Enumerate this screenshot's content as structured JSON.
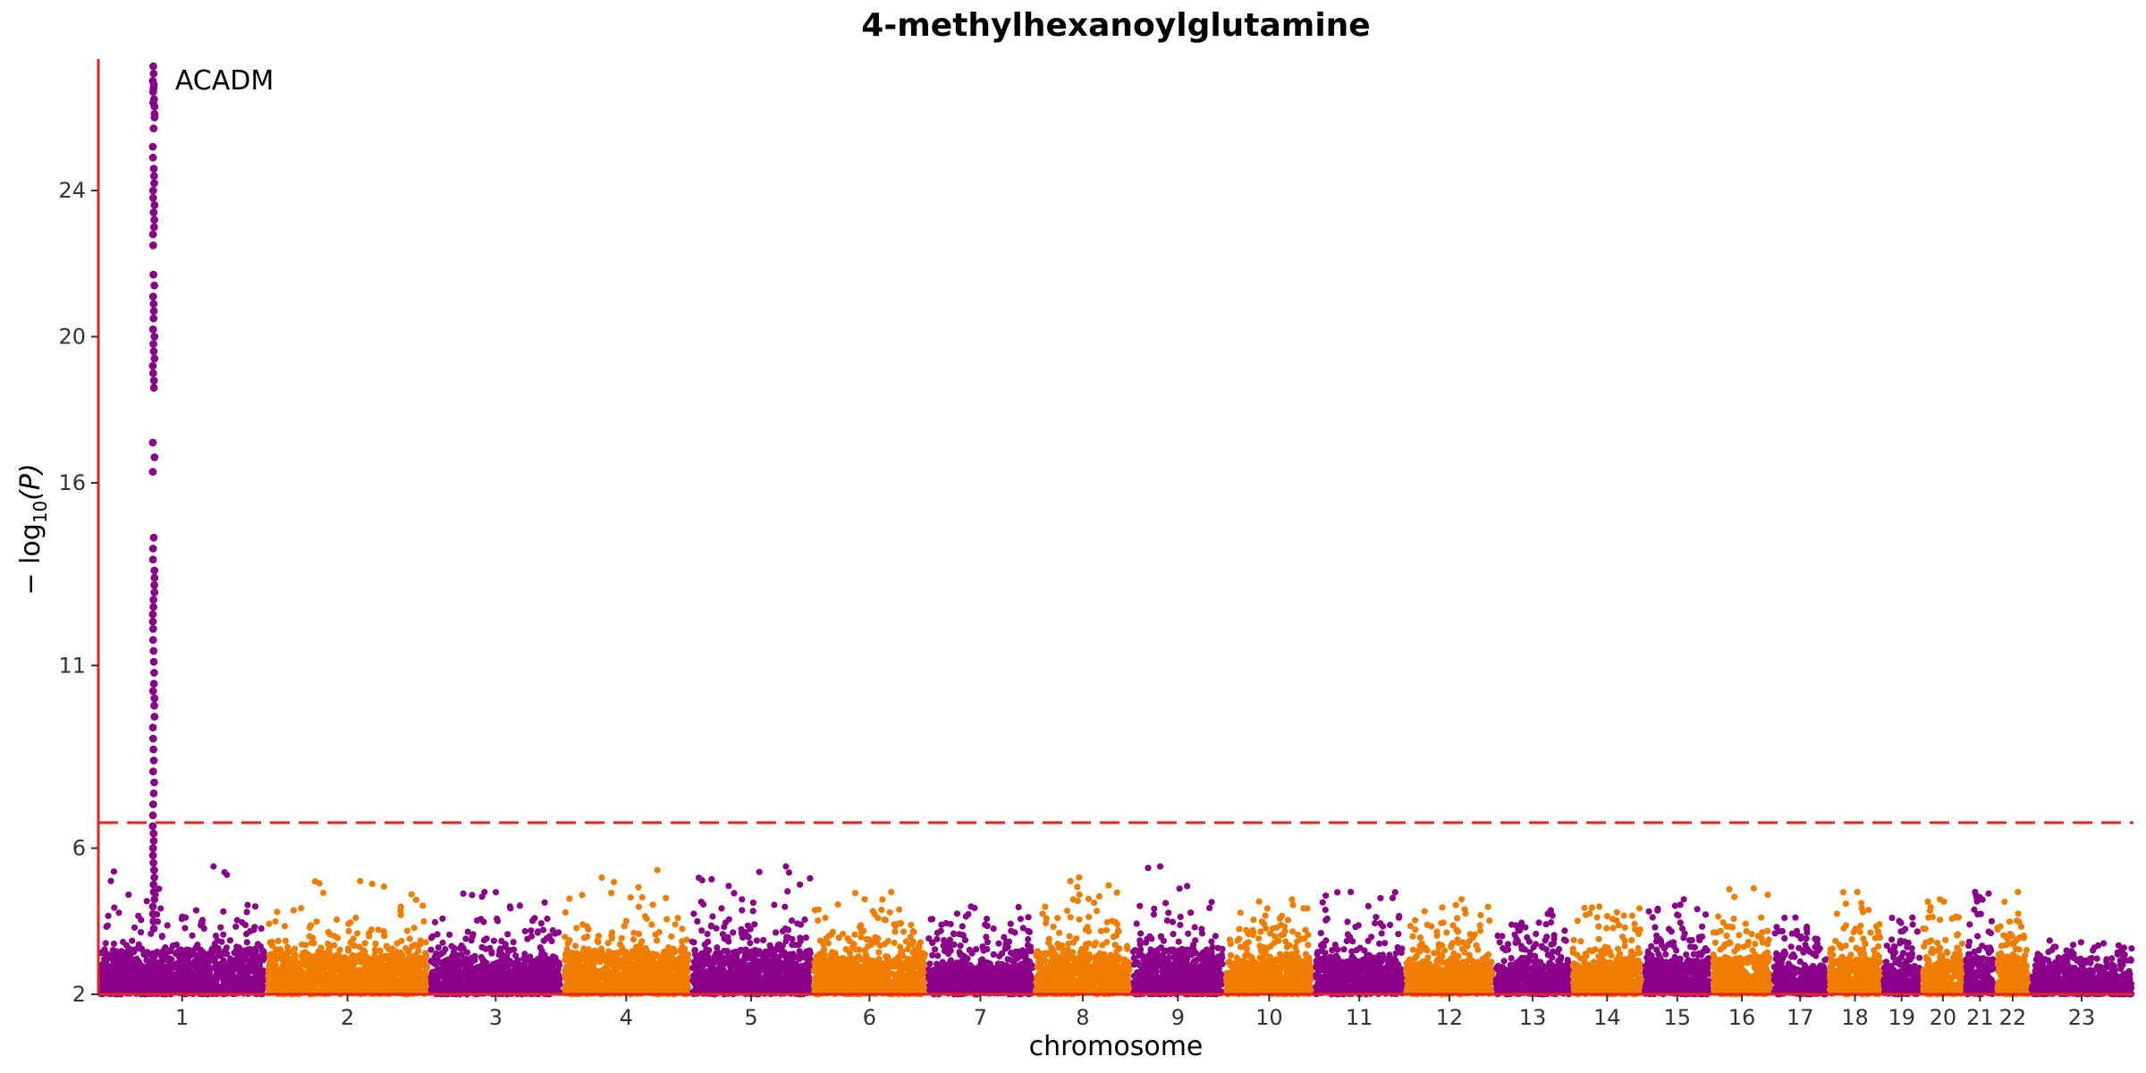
{
  "chart_data": {
    "type": "scatter",
    "subtype": "manhattan",
    "title": "4-methylhexanoylglutamine",
    "xlabel": "chromosome",
    "ylabel_parts": {
      "prefix": "− log",
      "subscript": "10",
      "suffix": "(P)"
    },
    "ylim": [
      2,
      27.6
    ],
    "yticks": [
      2,
      6,
      11,
      16,
      20,
      24
    ],
    "significance_threshold": 6.7,
    "threshold_line": {
      "style": "dashed",
      "color": "#e8231e"
    },
    "axis_color": "#e8231e",
    "grid": false,
    "legend": "none",
    "colors": {
      "odd_chromosomes": "#8b008b",
      "even_chromosomes": "#f07c00"
    },
    "chromosomes": [
      {
        "label": "1",
        "relative_size": 0.0808,
        "max_background": 5.5
      },
      {
        "label": "2",
        "relative_size": 0.0787,
        "max_background": 5.1
      },
      {
        "label": "3",
        "relative_size": 0.0642,
        "max_background": 4.8
      },
      {
        "label": "4",
        "relative_size": 0.0617,
        "max_background": 5.4
      },
      {
        "label": "5",
        "relative_size": 0.0588,
        "max_background": 5.5
      },
      {
        "label": "6",
        "relative_size": 0.0553,
        "max_background": 4.8
      },
      {
        "label": "7",
        "relative_size": 0.0517,
        "max_background": 4.4
      },
      {
        "label": "8",
        "relative_size": 0.047,
        "max_background": 5.2
      },
      {
        "label": "9",
        "relative_size": 0.0448,
        "max_background": 5.5
      },
      {
        "label": "10",
        "relative_size": 0.0432,
        "max_background": 4.6
      },
      {
        "label": "11",
        "relative_size": 0.0437,
        "max_background": 4.8
      },
      {
        "label": "12",
        "relative_size": 0.0432,
        "max_background": 4.6
      },
      {
        "label": "13",
        "relative_size": 0.0371,
        "max_background": 4.3
      },
      {
        "label": "14",
        "relative_size": 0.0347,
        "max_background": 4.4
      },
      {
        "label": "15",
        "relative_size": 0.033,
        "max_background": 4.6
      },
      {
        "label": "16",
        "relative_size": 0.0293,
        "max_background": 4.9
      },
      {
        "label": "17",
        "relative_size": 0.0269,
        "max_background": 4.1
      },
      {
        "label": "18",
        "relative_size": 0.026,
        "max_background": 4.8
      },
      {
        "label": "19",
        "relative_size": 0.019,
        "max_background": 4.1
      },
      {
        "label": "20",
        "relative_size": 0.0208,
        "max_background": 4.6
      },
      {
        "label": "21",
        "relative_size": 0.015,
        "max_background": 4.8
      },
      {
        "label": "22",
        "relative_size": 0.0165,
        "max_background": 4.8
      },
      {
        "label": "23",
        "relative_size": 0.05,
        "max_background": 3.3
      }
    ],
    "peak": {
      "chromosome": "1",
      "relative_position": 0.33,
      "gene_label": "ACADM",
      "max_neglog10p": 27.4,
      "values": [
        27.4,
        27.2,
        27.0,
        26.9,
        26.8,
        26.7,
        26.5,
        26.4,
        26.3,
        26.1,
        26.0,
        25.7,
        25.2,
        24.9,
        24.6,
        24.4,
        24.2,
        24.0,
        23.8,
        23.6,
        23.4,
        23.2,
        23.0,
        22.8,
        22.5,
        21.7,
        21.4,
        21.1,
        20.9,
        20.7,
        20.5,
        20.2,
        20.0,
        19.8,
        19.6,
        19.4,
        19.2,
        19.0,
        18.8,
        18.6,
        17.1,
        16.7,
        16.3,
        14.5,
        14.2,
        13.9,
        13.6,
        13.4,
        13.2,
        13.0,
        12.8,
        12.6,
        12.4,
        12.2,
        12.0,
        11.7,
        11.4,
        11.1,
        10.8,
        10.5,
        10.3,
        10.1,
        9.9,
        9.6,
        9.3,
        9.0,
        8.7,
        8.4,
        8.1,
        7.8,
        7.5,
        7.2,
        6.9,
        6.6,
        6.4,
        6.2,
        6.0,
        5.8,
        5.6,
        5.4,
        5.2,
        5.0,
        4.8,
        4.6,
        4.4,
        4.2,
        4.0,
        3.8
      ]
    }
  }
}
